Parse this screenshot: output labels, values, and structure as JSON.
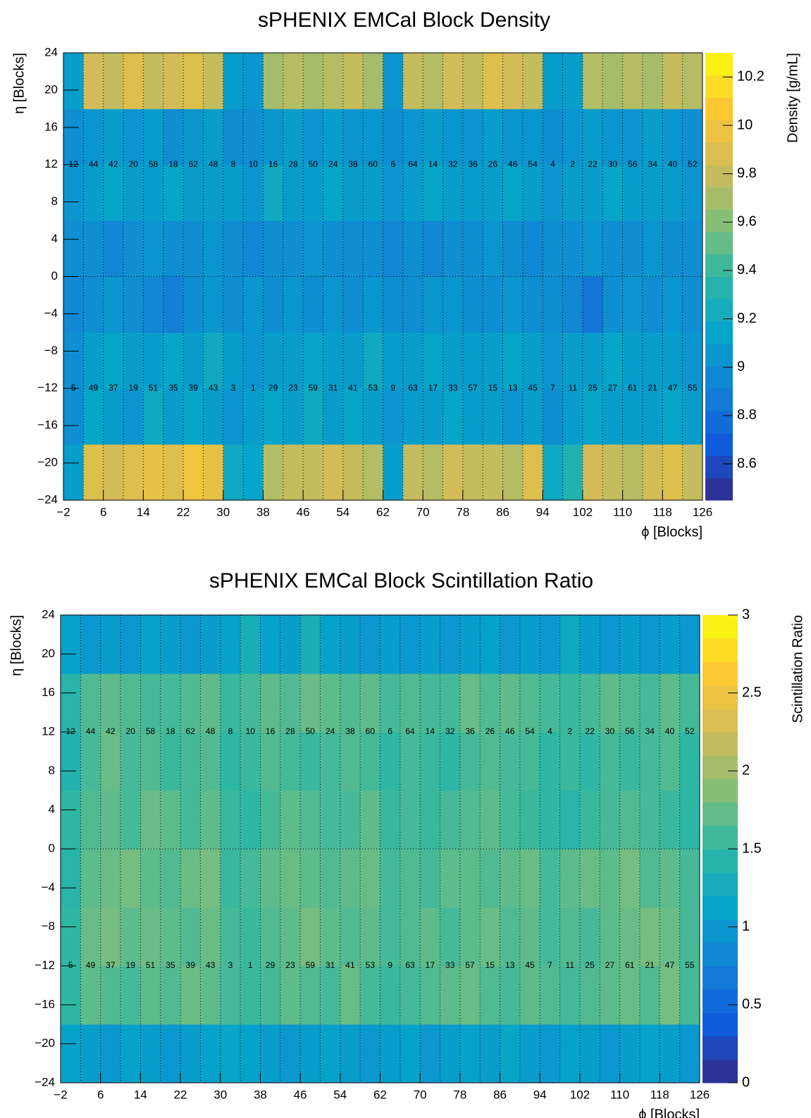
{
  "chart_data": [
    {
      "type": "heatmap",
      "title": "sPHENIX EMCal Block Density",
      "xlabel": "ϕ [Blocks]",
      "ylabel": "η [Blocks]",
      "zlabel": "Density [g/mL]",
      "xbins": [
        -2,
        2,
        6,
        10,
        14,
        18,
        22,
        26,
        30,
        34,
        38,
        42,
        46,
        50,
        54,
        58,
        62,
        66,
        70,
        74,
        78,
        82,
        86,
        90,
        94,
        98,
        102,
        106,
        110,
        114,
        118,
        122,
        126
      ],
      "ybins": [
        -24,
        -18,
        -12,
        -6,
        0,
        6,
        12,
        18,
        24
      ],
      "z": [
        [
          9.1,
          9.9,
          9.85,
          9.9,
          9.95,
          9.9,
          10.0,
          9.95,
          9.2,
          9.15,
          9.75,
          9.8,
          9.8,
          9.85,
          9.8,
          9.75,
          9.1,
          9.8,
          9.75,
          9.85,
          9.8,
          9.8,
          9.75,
          9.9,
          9.2,
          9.3,
          9.85,
          9.8,
          9.75,
          9.85,
          9.9,
          9.8
        ],
        [
          9.0,
          9.15,
          9.1,
          9.05,
          9.2,
          9.1,
          9.15,
          9.1,
          9.05,
          9.1,
          9.15,
          9.1,
          9.2,
          9.1,
          9.15,
          9.1,
          9.05,
          9.1,
          9.1,
          9.15,
          9.1,
          9.1,
          9.05,
          9.1,
          9.0,
          9.1,
          9.15,
          9.1,
          9.1,
          9.1,
          9.15,
          9.1
        ],
        [
          9.0,
          9.1,
          9.15,
          9.1,
          9.1,
          9.15,
          9.1,
          9.2,
          9.1,
          9.05,
          9.1,
          9.1,
          9.15,
          9.1,
          9.1,
          9.2,
          9.1,
          9.1,
          9.15,
          9.1,
          9.1,
          9.1,
          9.15,
          9.1,
          9.05,
          9.1,
          9.1,
          9.15,
          9.1,
          9.1,
          9.1,
          9.05
        ],
        [
          8.95,
          9.0,
          9.05,
          9.0,
          8.95,
          8.9,
          9.0,
          9.05,
          9.0,
          9.05,
          9.0,
          9.05,
          9.0,
          9.05,
          9.0,
          9.05,
          9.0,
          9.0,
          9.05,
          9.05,
          9.0,
          9.0,
          9.05,
          9.0,
          9.0,
          8.95,
          8.85,
          9.0,
          9.05,
          9.0,
          9.05,
          9.0
        ],
        [
          9.0,
          9.0,
          8.95,
          9.0,
          9.05,
          9.0,
          9.0,
          9.05,
          9.0,
          8.95,
          9.0,
          9.0,
          9.05,
          9.0,
          9.0,
          9.0,
          8.95,
          9.0,
          8.95,
          9.0,
          9.0,
          9.05,
          9.0,
          8.95,
          9.0,
          9.0,
          9.05,
          9.0,
          9.0,
          9.05,
          9.0,
          9.0
        ],
        [
          9.05,
          9.1,
          9.15,
          9.1,
          9.1,
          9.15,
          9.1,
          9.1,
          9.1,
          9.05,
          9.2,
          9.1,
          9.1,
          9.15,
          9.1,
          9.1,
          9.05,
          9.1,
          9.15,
          9.1,
          9.1,
          9.1,
          9.15,
          9.1,
          9.05,
          9.1,
          9.1,
          9.15,
          9.1,
          9.1,
          9.1,
          9.05
        ],
        [
          9.0,
          9.05,
          9.1,
          9.05,
          9.1,
          9.0,
          9.05,
          9.1,
          9.0,
          9.0,
          9.05,
          9.1,
          9.05,
          9.1,
          9.05,
          9.05,
          9.0,
          9.05,
          9.1,
          9.05,
          9.05,
          9.1,
          9.05,
          9.05,
          9.0,
          9.05,
          9.1,
          9.05,
          9.05,
          9.1,
          9.05,
          9.0
        ],
        [
          9.1,
          9.85,
          9.8,
          9.9,
          9.8,
          9.85,
          9.9,
          9.8,
          9.1,
          9.05,
          9.7,
          9.75,
          9.7,
          9.75,
          9.8,
          9.7,
          9.05,
          9.8,
          9.75,
          9.85,
          9.8,
          9.9,
          9.85,
          9.8,
          9.1,
          9.1,
          9.75,
          9.7,
          9.75,
          9.7,
          9.8,
          9.75
        ]
      ],
      "zlim": [
        8.45,
        10.3
      ],
      "zticks": [
        8.6,
        8.8,
        9,
        9.2,
        9.4,
        9.6,
        9.8,
        10,
        10.2
      ],
      "xlim": [
        -2,
        126
      ],
      "xticks": [
        {
          "value": -2,
          "label": "−2"
        },
        6,
        14,
        22,
        30,
        38,
        46,
        54,
        62,
        70,
        78,
        86,
        94,
        102,
        110,
        118,
        126
      ],
      "ylim": [
        -24,
        24
      ],
      "yticks": [
        {
          "value": -24,
          "label": "−24"
        },
        {
          "value": -20,
          "label": "−20"
        },
        {
          "value": -16,
          "label": "−16"
        },
        {
          "value": -12,
          "label": "−12"
        },
        {
          "value": -8,
          "label": "−8"
        },
        {
          "value": -4,
          "label": "−4"
        },
        0,
        4,
        8,
        12,
        16,
        20,
        24
      ],
      "sector_labels_top": [
        12,
        44,
        42,
        20,
        58,
        18,
        62,
        48,
        8,
        10,
        16,
        28,
        50,
        24,
        38,
        60,
        6,
        64,
        14,
        32,
        36,
        26,
        46,
        54,
        4,
        2,
        22,
        30,
        56,
        34,
        40,
        52
      ],
      "sector_labels_bottom": [
        5,
        49,
        37,
        19,
        51,
        35,
        39,
        43,
        3,
        1,
        29,
        23,
        59,
        31,
        41,
        53,
        9,
        63,
        17,
        33,
        57,
        15,
        13,
        45,
        7,
        11,
        25,
        27,
        61,
        21,
        47,
        55
      ],
      "palette": [
        "#352a87",
        "#0f5cdd",
        "#1481d6",
        "#06a4ca",
        "#2eb7a4",
        "#87bf77",
        "#d1bb59",
        "#fec832",
        "#f9fb0e"
      ]
    },
    {
      "type": "heatmap",
      "title": "sPHENIX EMCal Block Scintillation Ratio",
      "xlabel": "ϕ [Blocks]",
      "ylabel": "η [Blocks]",
      "zlabel": "Scintillation Ratio",
      "xbins": [
        -2,
        2,
        6,
        10,
        14,
        18,
        22,
        26,
        30,
        34,
        38,
        42,
        46,
        50,
        54,
        58,
        62,
        66,
        70,
        74,
        78,
        82,
        86,
        90,
        94,
        98,
        102,
        106,
        110,
        114,
        118,
        122,
        126
      ],
      "ybins": [
        -24,
        -18,
        -12,
        -6,
        0,
        6,
        12,
        18,
        24
      ],
      "z": [
        [
          1.1,
          1.05,
          1.0,
          1.1,
          1.05,
          1.0,
          1.05,
          1.1,
          1.15,
          1.1,
          1.05,
          1.0,
          1.05,
          1.1,
          1.05,
          1.0,
          1.05,
          1.1,
          1.0,
          1.05,
          1.1,
          1.05,
          1.15,
          1.05,
          1.0,
          1.1,
          1.05,
          1.0,
          1.05,
          1.1,
          1.05,
          1.0
        ],
        [
          1.5,
          1.7,
          1.65,
          1.6,
          1.7,
          1.65,
          1.75,
          1.7,
          1.6,
          1.55,
          1.6,
          1.7,
          1.65,
          1.6,
          1.75,
          1.6,
          1.55,
          1.6,
          1.65,
          1.7,
          1.75,
          1.65,
          1.6,
          1.7,
          1.65,
          1.6,
          1.65,
          1.7,
          1.75,
          1.65,
          1.8,
          1.6
        ],
        [
          1.5,
          1.75,
          1.8,
          1.7,
          1.75,
          1.7,
          1.65,
          1.75,
          1.6,
          1.55,
          1.65,
          1.7,
          1.8,
          1.7,
          1.65,
          1.7,
          1.6,
          1.65,
          1.7,
          1.6,
          1.7,
          1.75,
          1.65,
          1.7,
          1.6,
          1.65,
          1.6,
          1.7,
          1.75,
          1.8,
          1.75,
          1.6
        ],
        [
          1.45,
          1.7,
          1.75,
          1.8,
          1.7,
          1.65,
          1.75,
          1.8,
          1.55,
          1.6,
          1.7,
          1.75,
          1.7,
          1.65,
          1.7,
          1.75,
          1.6,
          1.65,
          1.6,
          1.7,
          1.7,
          1.65,
          1.7,
          1.75,
          1.6,
          1.7,
          1.75,
          1.7,
          1.8,
          1.65,
          1.7,
          1.6
        ],
        [
          1.5,
          1.65,
          1.7,
          1.6,
          1.75,
          1.7,
          1.6,
          1.7,
          1.55,
          1.5,
          1.6,
          1.7,
          1.65,
          1.6,
          1.6,
          1.7,
          1.55,
          1.6,
          1.55,
          1.6,
          1.65,
          1.7,
          1.6,
          1.55,
          1.5,
          1.45,
          1.55,
          1.6,
          1.65,
          1.6,
          1.55,
          1.5
        ],
        [
          1.4,
          1.6,
          1.75,
          1.6,
          1.65,
          1.55,
          1.6,
          1.65,
          1.5,
          1.55,
          1.65,
          1.6,
          1.55,
          1.6,
          1.65,
          1.6,
          1.5,
          1.6,
          1.55,
          1.5,
          1.6,
          1.65,
          1.6,
          1.6,
          1.5,
          1.55,
          1.5,
          1.6,
          1.55,
          1.6,
          1.65,
          1.5
        ],
        [
          1.45,
          1.65,
          1.7,
          1.65,
          1.6,
          1.6,
          1.65,
          1.7,
          1.55,
          1.6,
          1.7,
          1.65,
          1.75,
          1.7,
          1.65,
          1.7,
          1.6,
          1.65,
          1.6,
          1.6,
          1.75,
          1.65,
          1.7,
          1.65,
          1.6,
          1.55,
          1.6,
          1.7,
          1.65,
          1.6,
          1.7,
          1.6
        ],
        [
          1.1,
          1.0,
          1.05,
          1.0,
          1.1,
          1.05,
          1.0,
          1.05,
          1.1,
          1.3,
          1.1,
          1.05,
          1.3,
          1.1,
          1.05,
          1.0,
          1.05,
          1.0,
          1.05,
          1.0,
          1.05,
          1.1,
          1.0,
          1.05,
          1.0,
          1.2,
          1.05,
          1.0,
          1.05,
          1.0,
          1.05,
          1.0
        ]
      ],
      "zlim": [
        0,
        3
      ],
      "zticks": [
        0,
        0.5,
        1,
        1.5,
        2,
        2.5,
        3
      ],
      "xlim": [
        -2,
        126
      ],
      "xticks": [
        {
          "value": -2,
          "label": "−2"
        },
        6,
        14,
        22,
        30,
        38,
        46,
        54,
        62,
        70,
        78,
        86,
        94,
        102,
        110,
        118,
        126
      ],
      "ylim": [
        -24,
        24
      ],
      "yticks": [
        {
          "value": -24,
          "label": "−24"
        },
        {
          "value": -20,
          "label": "−20"
        },
        {
          "value": -16,
          "label": "−16"
        },
        {
          "value": -12,
          "label": "−12"
        },
        {
          "value": -8,
          "label": "−8"
        },
        {
          "value": -4,
          "label": "−4"
        },
        0,
        4,
        8,
        12,
        16,
        20,
        24
      ],
      "sector_labels_top": [
        12,
        44,
        42,
        20,
        58,
        18,
        62,
        48,
        8,
        10,
        16,
        28,
        50,
        24,
        38,
        60,
        6,
        64,
        14,
        32,
        36,
        26,
        46,
        54,
        4,
        2,
        22,
        30,
        56,
        34,
        40,
        52
      ],
      "sector_labels_bottom": [
        5,
        49,
        37,
        19,
        51,
        35,
        39,
        43,
        3,
        1,
        29,
        23,
        59,
        31,
        41,
        53,
        9,
        63,
        17,
        33,
        57,
        15,
        13,
        45,
        7,
        11,
        25,
        27,
        61,
        21,
        47,
        55
      ],
      "palette": [
        "#352a87",
        "#0f5cdd",
        "#1481d6",
        "#06a4ca",
        "#2eb7a4",
        "#87bf77",
        "#d1bb59",
        "#fec832",
        "#f9fb0e"
      ]
    }
  ]
}
